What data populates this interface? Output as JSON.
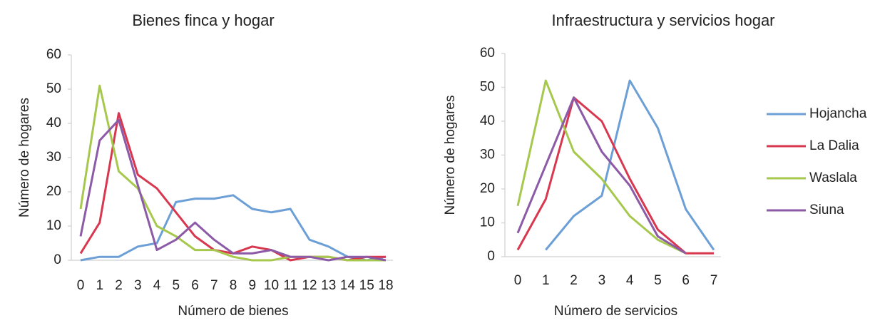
{
  "chart_data": [
    {
      "type": "line",
      "title": "Bienes finca y hogar",
      "xlabel": "Número de bienes",
      "ylabel": "Número de hogares",
      "categories": [
        "0",
        "1",
        "2",
        "3",
        "4",
        "5",
        "6",
        "7",
        "8",
        "9",
        "10",
        "11",
        "12",
        "13",
        "14",
        "15",
        "18"
      ],
      "ylim": [
        0,
        60
      ],
      "yticks": [
        0,
        10,
        20,
        30,
        40,
        50,
        60
      ],
      "series": [
        {
          "color": "#6c9fd6",
          "values": [
            0,
            1,
            1,
            4,
            5,
            17,
            18,
            18,
            19,
            15,
            14,
            15,
            6,
            4,
            1,
            0,
            1
          ]
        },
        {
          "color": "#d8384f",
          "values": [
            2,
            11,
            43,
            25,
            21,
            14,
            7,
            3,
            2,
            4,
            3,
            0,
            1,
            1,
            0,
            1,
            1
          ]
        },
        {
          "color": "#a6c84c",
          "values": [
            15,
            51,
            26,
            21,
            10,
            7,
            3,
            3,
            1,
            0,
            0,
            1,
            1,
            1,
            0,
            0,
            0
          ]
        },
        {
          "color": "#8c5aa6",
          "values": [
            7,
            35,
            41,
            22,
            3,
            6,
            11,
            6,
            2,
            2,
            3,
            1,
            1,
            0,
            1,
            1,
            0
          ]
        }
      ]
    },
    {
      "type": "line",
      "title": "Infraestructura y servicios hogar",
      "xlabel": "Número de servicios",
      "ylabel": "Número de hogares",
      "categories": [
        "0",
        "1",
        "2",
        "3",
        "4",
        "5",
        "6",
        "7"
      ],
      "ylim": [
        0,
        60
      ],
      "yticks": [
        0,
        10,
        20,
        30,
        40,
        50,
        60
      ],
      "legend": "right",
      "series": [
        {
          "name": "Hojancha",
          "color": "#6c9fd6",
          "values": [
            null,
            2,
            12,
            18,
            52,
            38,
            14,
            2
          ]
        },
        {
          "name": "La Dalia",
          "color": "#d8384f",
          "values": [
            2,
            17,
            47,
            40,
            23,
            8,
            1,
            1
          ]
        },
        {
          "name": "Waslala",
          "color": "#a6c84c",
          "values": [
            15,
            52,
            31,
            23,
            12,
            5,
            1,
            null
          ]
        },
        {
          "name": "Siuna",
          "color": "#8c5aa6",
          "values": [
            7,
            27,
            47,
            31,
            21,
            6,
            1,
            null
          ]
        }
      ]
    }
  ]
}
